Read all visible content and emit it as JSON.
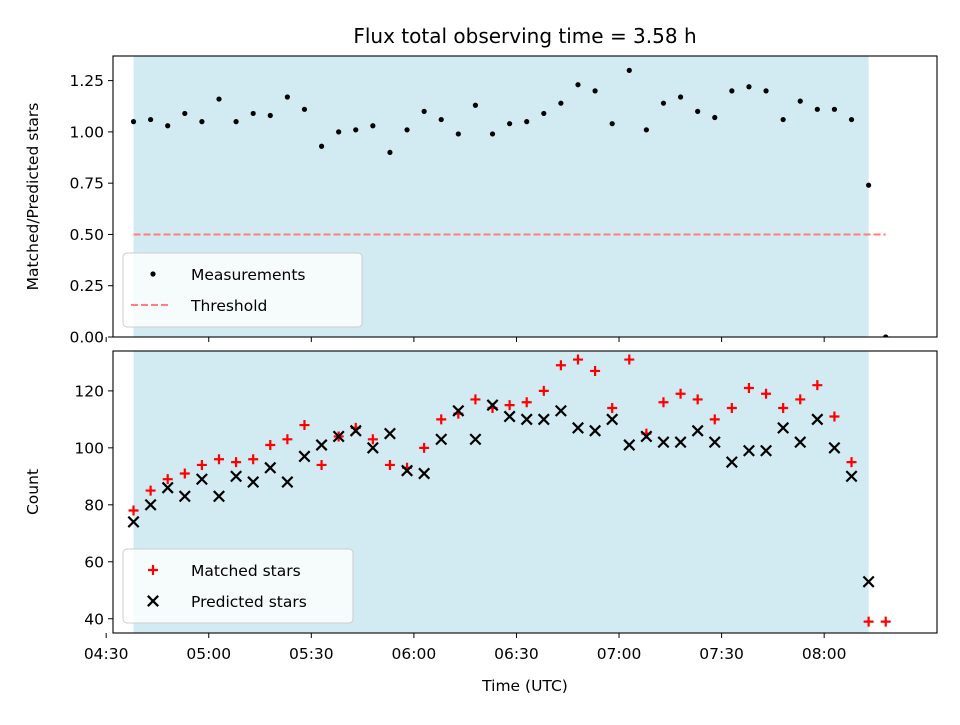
{
  "chart_data": {
    "type": "scatter",
    "title": "Flux total observing time = 3.58 h",
    "xlabel": "Time (UTC)",
    "x_unit": "HH:MM UTC",
    "xlim": [
      "04:32",
      "08:33"
    ],
    "x_ticks": [
      "04:30",
      "05:00",
      "05:30",
      "06:00",
      "06:30",
      "07:00",
      "07:30",
      "08:00"
    ],
    "observing_span": {
      "start": "04:38",
      "end": "08:13",
      "color": "#add8e6"
    },
    "panels": [
      {
        "name": "ratio",
        "ylabel": "Matched/Predicted stars",
        "ylim": [
          0,
          1.37
        ],
        "y_ticks": [
          "0.00",
          "0.25",
          "0.50",
          "0.75",
          "1.00",
          "1.25"
        ],
        "legend_position": "lower-left",
        "threshold": {
          "name": "Threshold",
          "value": 0.5,
          "x_start": "04:38",
          "x_end": "08:18",
          "color": "#ff7f7f",
          "style": "dashed"
        },
        "series": [
          {
            "name": "Measurements",
            "marker": "dot",
            "color": "#000000",
            "points": [
              [
                "04:38",
                1.05
              ],
              [
                "04:43",
                1.06
              ],
              [
                "04:48",
                1.03
              ],
              [
                "04:53",
                1.09
              ],
              [
                "04:58",
                1.05
              ],
              [
                "05:03",
                1.16
              ],
              [
                "05:08",
                1.05
              ],
              [
                "05:13",
                1.09
              ],
              [
                "05:18",
                1.08
              ],
              [
                "05:23",
                1.17
              ],
              [
                "05:28",
                1.11
              ],
              [
                "05:33",
                0.93
              ],
              [
                "05:38",
                1.0
              ],
              [
                "05:43",
                1.01
              ],
              [
                "05:48",
                1.03
              ],
              [
                "05:53",
                0.9
              ],
              [
                "05:58",
                1.01
              ],
              [
                "06:03",
                1.1
              ],
              [
                "06:08",
                1.06
              ],
              [
                "06:13",
                0.99
              ],
              [
                "06:18",
                1.13
              ],
              [
                "06:23",
                0.99
              ],
              [
                "06:28",
                1.04
              ],
              [
                "06:33",
                1.05
              ],
              [
                "06:38",
                1.09
              ],
              [
                "06:43",
                1.14
              ],
              [
                "06:48",
                1.23
              ],
              [
                "06:53",
                1.2
              ],
              [
                "06:58",
                1.04
              ],
              [
                "07:03",
                1.3
              ],
              [
                "07:08",
                1.01
              ],
              [
                "07:13",
                1.14
              ],
              [
                "07:18",
                1.17
              ],
              [
                "07:23",
                1.1
              ],
              [
                "07:28",
                1.07
              ],
              [
                "07:33",
                1.2
              ],
              [
                "07:38",
                1.22
              ],
              [
                "07:43",
                1.2
              ],
              [
                "07:48",
                1.06
              ],
              [
                "07:53",
                1.15
              ],
              [
                "07:58",
                1.11
              ],
              [
                "08:03",
                1.11
              ],
              [
                "08:08",
                1.06
              ],
              [
                "08:13",
                0.74
              ],
              [
                "08:18",
                0.0
              ]
            ]
          }
        ]
      },
      {
        "name": "counts",
        "ylabel": "Count",
        "ylim": [
          35,
          134
        ],
        "y_ticks": [
          "40",
          "60",
          "80",
          "100",
          "120"
        ],
        "legend_position": "lower-left",
        "series": [
          {
            "name": "Matched stars",
            "marker": "plus",
            "color": "#ff0000",
            "points": [
              [
                "04:38",
                78
              ],
              [
                "04:43",
                85
              ],
              [
                "04:48",
                89
              ],
              [
                "04:53",
                91
              ],
              [
                "04:58",
                94
              ],
              [
                "05:03",
                96
              ],
              [
                "05:08",
                95
              ],
              [
                "05:13",
                96
              ],
              [
                "05:18",
                101
              ],
              [
                "05:23",
                103
              ],
              [
                "05:28",
                108
              ],
              [
                "05:33",
                94
              ],
              [
                "05:38",
                104
              ],
              [
                "05:43",
                107
              ],
              [
                "05:48",
                103
              ],
              [
                "05:53",
                94
              ],
              [
                "05:58",
                93
              ],
              [
                "06:03",
                100
              ],
              [
                "06:08",
                110
              ],
              [
                "06:13",
                112
              ],
              [
                "06:18",
                117
              ],
              [
                "06:23",
                114
              ],
              [
                "06:28",
                115
              ],
              [
                "06:33",
                116
              ],
              [
                "06:38",
                120
              ],
              [
                "06:43",
                129
              ],
              [
                "06:48",
                131
              ],
              [
                "06:53",
                127
              ],
              [
                "06:58",
                114
              ],
              [
                "07:03",
                131
              ],
              [
                "07:08",
                105
              ],
              [
                "07:13",
                116
              ],
              [
                "07:18",
                119
              ],
              [
                "07:23",
                117
              ],
              [
                "07:28",
                110
              ],
              [
                "07:33",
                114
              ],
              [
                "07:38",
                121
              ],
              [
                "07:43",
                119
              ],
              [
                "07:48",
                114
              ],
              [
                "07:53",
                117
              ],
              [
                "07:58",
                122
              ],
              [
                "08:03",
                111
              ],
              [
                "08:08",
                95
              ],
              [
                "08:13",
                39
              ],
              [
                "08:18",
                39
              ]
            ]
          },
          {
            "name": "Predicted stars",
            "marker": "x",
            "color": "#000000",
            "points": [
              [
                "04:38",
                74
              ],
              [
                "04:43",
                80
              ],
              [
                "04:48",
                86
              ],
              [
                "04:53",
                83
              ],
              [
                "04:58",
                89
              ],
              [
                "05:03",
                83
              ],
              [
                "05:08",
                90
              ],
              [
                "05:13",
                88
              ],
              [
                "05:18",
                93
              ],
              [
                "05:23",
                88
              ],
              [
                "05:28",
                97
              ],
              [
                "05:33",
                101
              ],
              [
                "05:38",
                104
              ],
              [
                "05:43",
                106
              ],
              [
                "05:48",
                100
              ],
              [
                "05:53",
                105
              ],
              [
                "05:58",
                92
              ],
              [
                "06:03",
                91
              ],
              [
                "06:08",
                103
              ],
              [
                "06:13",
                113
              ],
              [
                "06:18",
                103
              ],
              [
                "06:23",
                115
              ],
              [
                "06:28",
                111
              ],
              [
                "06:33",
                110
              ],
              [
                "06:38",
                110
              ],
              [
                "06:43",
                113
              ],
              [
                "06:48",
                107
              ],
              [
                "06:53",
                106
              ],
              [
                "06:58",
                110
              ],
              [
                "07:03",
                101
              ],
              [
                "07:08",
                104
              ],
              [
                "07:13",
                102
              ],
              [
                "07:18",
                102
              ],
              [
                "07:23",
                106
              ],
              [
                "07:28",
                102
              ],
              [
                "07:33",
                95
              ],
              [
                "07:38",
                99
              ],
              [
                "07:43",
                99
              ],
              [
                "07:48",
                107
              ],
              [
                "07:53",
                102
              ],
              [
                "07:58",
                110
              ],
              [
                "08:03",
                100
              ],
              [
                "08:08",
                90
              ],
              [
                "08:13",
                53
              ]
            ]
          }
        ]
      }
    ]
  }
}
